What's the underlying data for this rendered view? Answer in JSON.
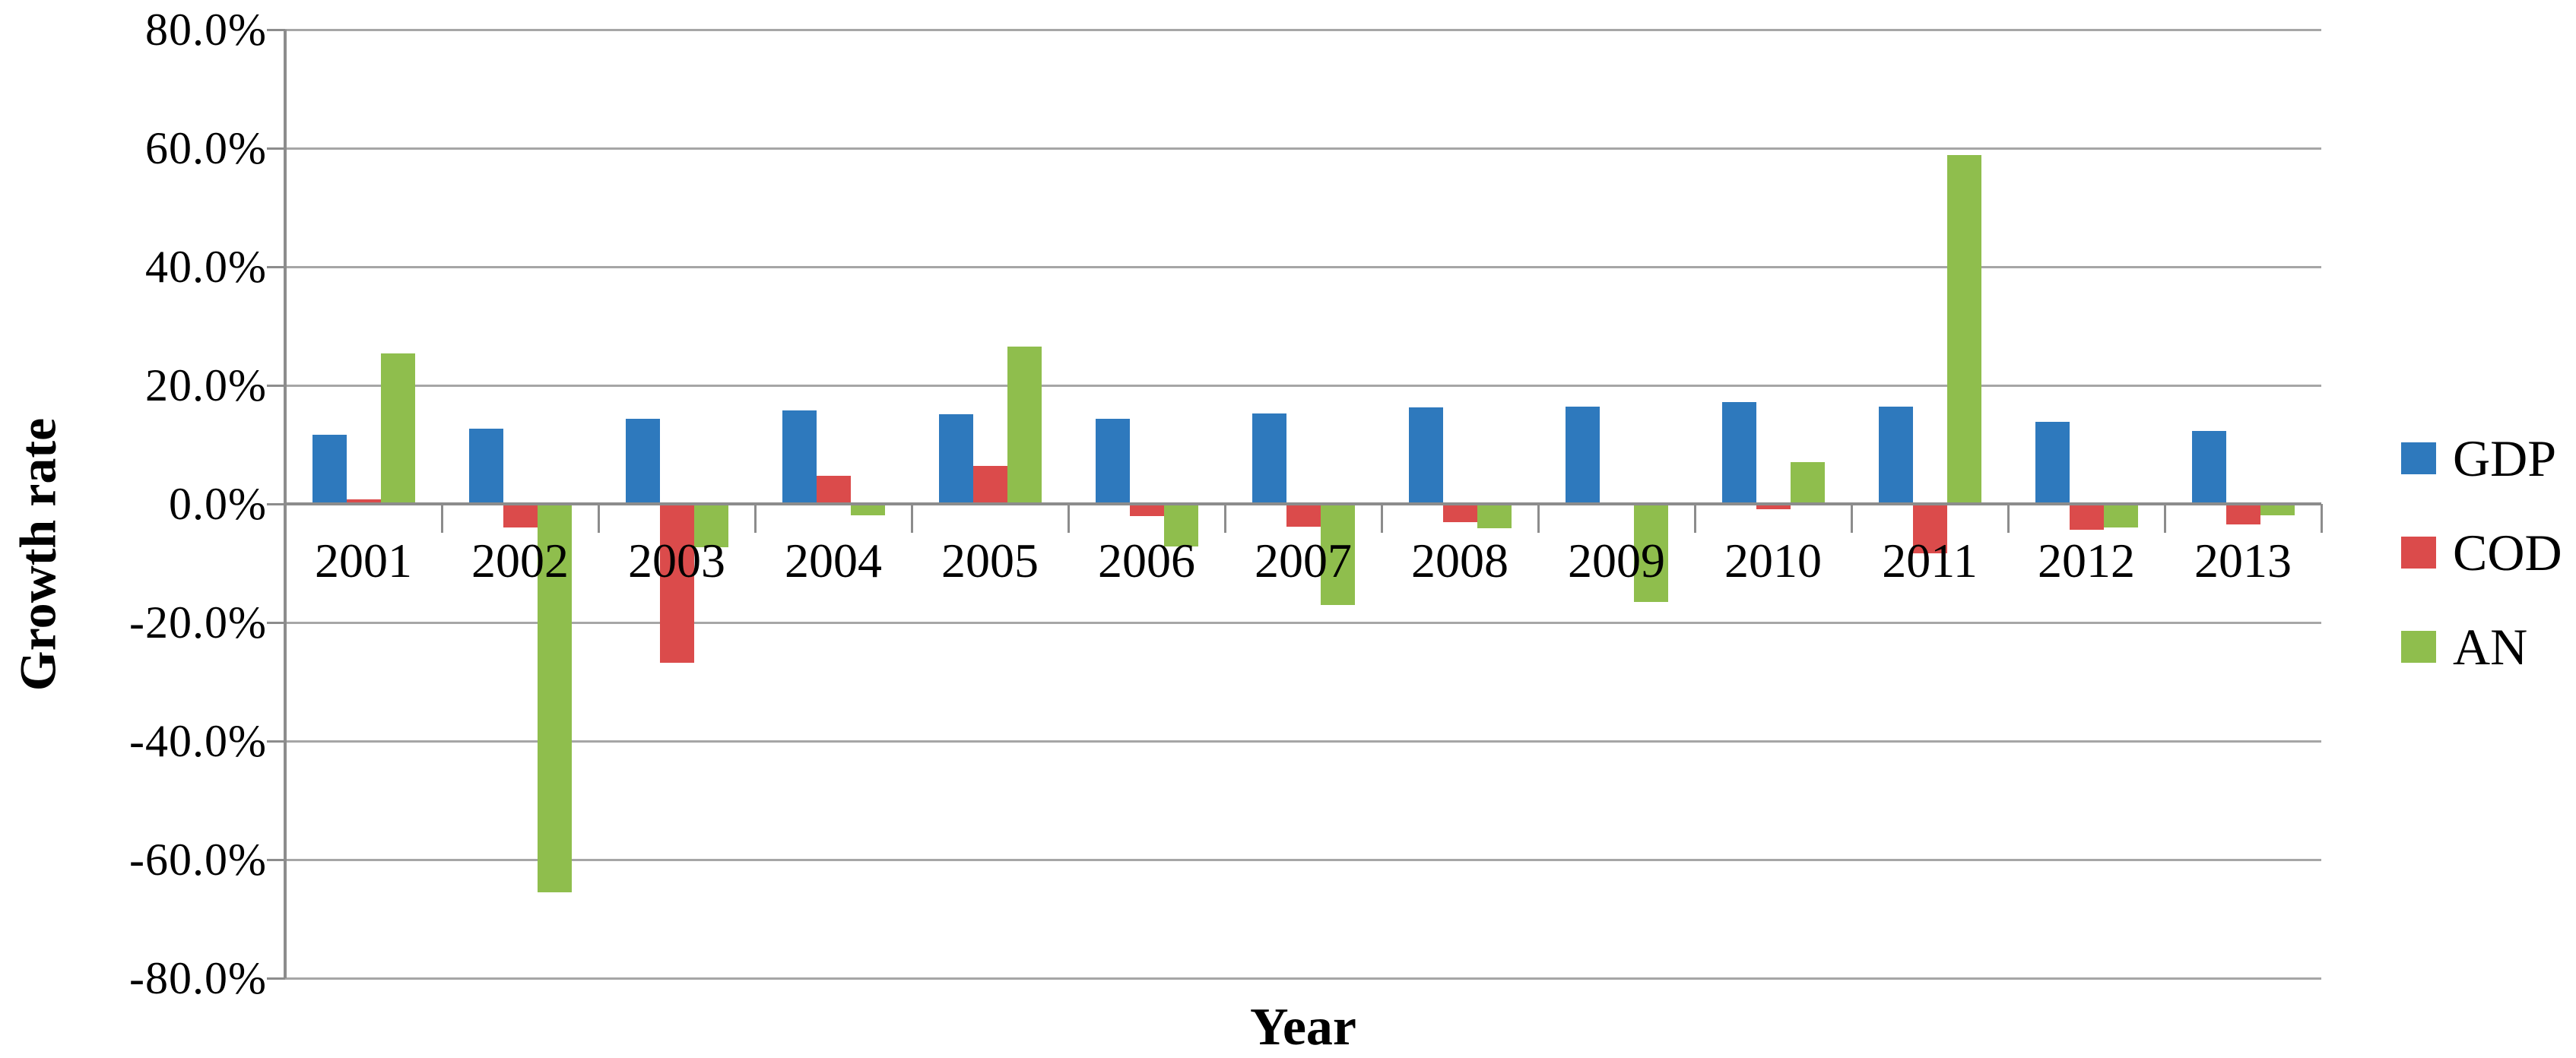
{
  "chart_data": {
    "type": "bar",
    "title": "",
    "categories": [
      "2001",
      "2002",
      "2003",
      "2004",
      "2005",
      "2006",
      "2007",
      "2008",
      "2009",
      "2010",
      "2011",
      "2012",
      "2013"
    ],
    "series": [
      {
        "name": "GDP",
        "color": "#2e79bd",
        "values": [
          11.7,
          12.7,
          14.4,
          15.8,
          15.1,
          14.4,
          15.2,
          16.3,
          16.4,
          17.2,
          16.4,
          13.8,
          12.3
        ]
      },
      {
        "name": "COD",
        "color": "#db4b4b",
        "values": [
          0.8,
          -4.0,
          -26.8,
          4.8,
          6.4,
          -2.1,
          -3.8,
          -3.1,
          0.0,
          -0.9,
          -8.3,
          -4.3,
          -3.4
        ]
      },
      {
        "name": "AN",
        "color": "#8fbe4d",
        "values": [
          25.4,
          -65.5,
          -7.3,
          -1.9,
          26.5,
          -7.2,
          -17.0,
          -4.1,
          -16.6,
          7.0,
          58.8,
          -4.0,
          -1.9
        ]
      }
    ],
    "xlabel": "Year",
    "ylabel": "Growth rate",
    "ylim": [
      -80,
      80
    ],
    "ytick_step": 20,
    "ytick_labels": [
      "80.0%",
      "60.0%",
      "40.0%",
      "20.0%",
      "0.0%",
      "-20.0%",
      "-40.0%",
      "-60.0%",
      "-80.0%"
    ],
    "grid": true,
    "legend_position": "right",
    "legend_entries": [
      "GDP",
      "COD",
      "AN"
    ]
  },
  "colors": {
    "background": "#ffffff",
    "gridline": "#a6a6a6",
    "axis": "#8c8c8c",
    "text": "#000000"
  }
}
